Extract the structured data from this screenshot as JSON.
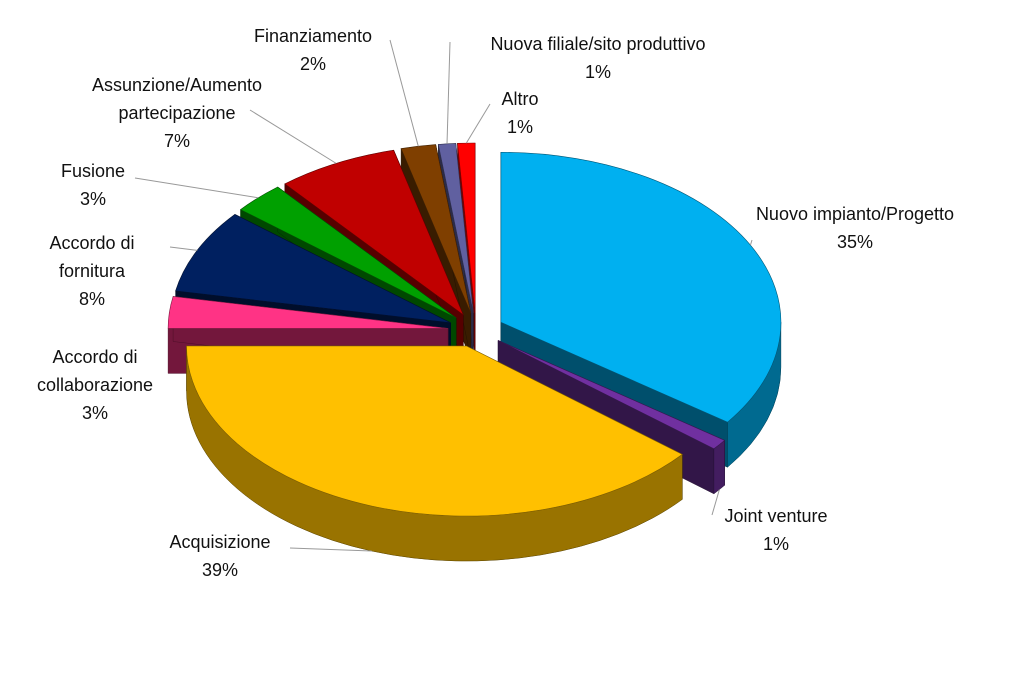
{
  "chart_data": {
    "type": "pie3d",
    "categories": [
      "Nuovo impianto/Progetto",
      "Joint venture",
      "Acquisizione",
      "Accordo di collaborazione",
      "Accordo di fornitura",
      "Fusione",
      "Assunzione/Aumento partecipazione",
      "Finanziamento",
      "Nuova filiale/sito produttivo",
      "Altro"
    ],
    "values": [
      35,
      1,
      39,
      3,
      8,
      3,
      7,
      2,
      1,
      1
    ],
    "value_labels": [
      "35%",
      "1%",
      "39%",
      "3%",
      "8%",
      "3%",
      "7%",
      "2%",
      "1%",
      "1%"
    ],
    "colors": [
      "#00b0f0",
      "#7030a0",
      "#ffc000",
      "#ff3385",
      "#002060",
      "#00a000",
      "#c00000",
      "#7f3f00",
      "#6060a0",
      "#ff0000"
    ]
  }
}
